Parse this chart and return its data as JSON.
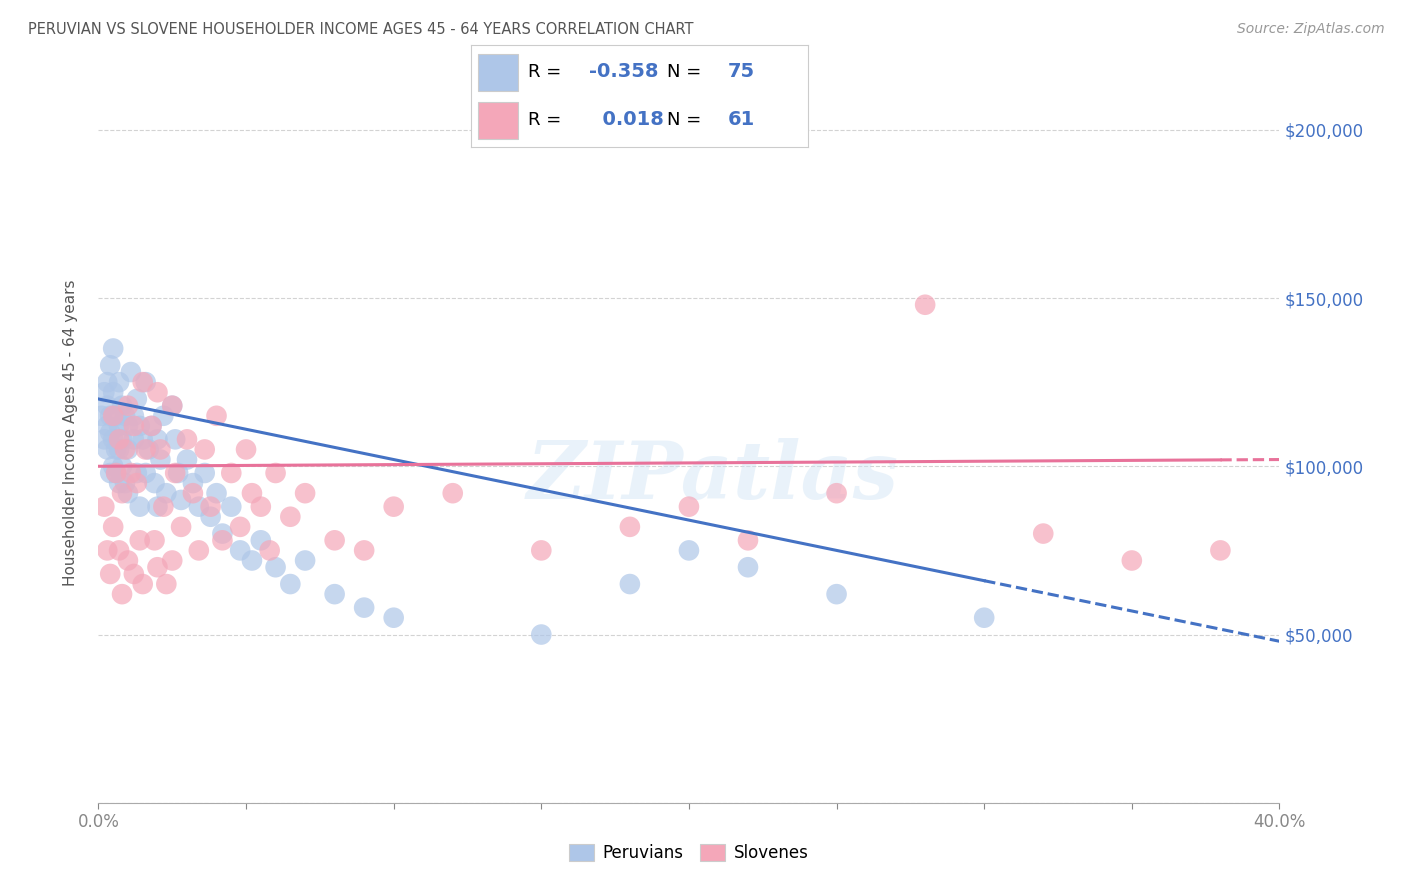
{
  "title": "PERUVIAN VS SLOVENE HOUSEHOLDER INCOME AGES 45 - 64 YEARS CORRELATION CHART",
  "source": "Source: ZipAtlas.com",
  "ylabel": "Householder Income Ages 45 - 64 years",
  "xlim": [
    0.0,
    0.4
  ],
  "ylim": [
    0,
    220000
  ],
  "peruvian_color": "#aec6e8",
  "slovene_color": "#f4a7b9",
  "peruvian_R": -0.358,
  "peruvian_N": 75,
  "slovene_R": 0.018,
  "slovene_N": 61,
  "peruvian_line_color": "#4472c4",
  "slovene_line_color": "#e8729a",
  "watermark": "ZIPatlas",
  "background_color": "#ffffff",
  "grid_color": "#c8c8c8",
  "title_color": "#555555",
  "axis_label_color": "#555555",
  "ytick_color": "#4472c4",
  "legend_text_color": "#4472c4",
  "peruvian_scatter_x": [
    0.001,
    0.002,
    0.002,
    0.003,
    0.003,
    0.003,
    0.003,
    0.004,
    0.004,
    0.004,
    0.004,
    0.005,
    0.005,
    0.005,
    0.005,
    0.006,
    0.006,
    0.006,
    0.007,
    0.007,
    0.007,
    0.007,
    0.008,
    0.008,
    0.008,
    0.009,
    0.009,
    0.01,
    0.01,
    0.01,
    0.011,
    0.012,
    0.012,
    0.013,
    0.013,
    0.014,
    0.014,
    0.015,
    0.016,
    0.016,
    0.017,
    0.018,
    0.019,
    0.02,
    0.02,
    0.021,
    0.022,
    0.023,
    0.025,
    0.026,
    0.027,
    0.028,
    0.03,
    0.032,
    0.034,
    0.036,
    0.038,
    0.04,
    0.042,
    0.045,
    0.048,
    0.052,
    0.055,
    0.06,
    0.065,
    0.07,
    0.08,
    0.09,
    0.1,
    0.15,
    0.18,
    0.2,
    0.22,
    0.25,
    0.3
  ],
  "peruvian_scatter_y": [
    115000,
    108000,
    122000,
    112000,
    105000,
    118000,
    125000,
    110000,
    98000,
    130000,
    115000,
    122000,
    108000,
    135000,
    100000,
    115000,
    105000,
    98000,
    112000,
    125000,
    105000,
    95000,
    108000,
    118000,
    100000,
    115000,
    95000,
    112000,
    105000,
    92000,
    128000,
    115000,
    108000,
    120000,
    98000,
    112000,
    88000,
    108000,
    125000,
    98000,
    105000,
    112000,
    95000,
    108000,
    88000,
    102000,
    115000,
    92000,
    118000,
    108000,
    98000,
    90000,
    102000,
    95000,
    88000,
    98000,
    85000,
    92000,
    80000,
    88000,
    75000,
    72000,
    78000,
    70000,
    65000,
    72000,
    62000,
    58000,
    55000,
    50000,
    65000,
    75000,
    70000,
    62000,
    55000
  ],
  "slovene_scatter_x": [
    0.002,
    0.003,
    0.004,
    0.005,
    0.005,
    0.006,
    0.007,
    0.007,
    0.008,
    0.008,
    0.009,
    0.01,
    0.01,
    0.011,
    0.012,
    0.012,
    0.013,
    0.014,
    0.015,
    0.015,
    0.016,
    0.018,
    0.019,
    0.02,
    0.02,
    0.021,
    0.022,
    0.023,
    0.025,
    0.025,
    0.026,
    0.028,
    0.03,
    0.032,
    0.034,
    0.036,
    0.038,
    0.04,
    0.042,
    0.045,
    0.048,
    0.05,
    0.052,
    0.055,
    0.058,
    0.06,
    0.065,
    0.07,
    0.08,
    0.09,
    0.1,
    0.12,
    0.15,
    0.18,
    0.2,
    0.22,
    0.25,
    0.28,
    0.32,
    0.35,
    0.38
  ],
  "slovene_scatter_y": [
    88000,
    75000,
    68000,
    115000,
    82000,
    98000,
    108000,
    75000,
    92000,
    62000,
    105000,
    118000,
    72000,
    98000,
    112000,
    68000,
    95000,
    78000,
    125000,
    65000,
    105000,
    112000,
    78000,
    122000,
    70000,
    105000,
    88000,
    65000,
    118000,
    72000,
    98000,
    82000,
    108000,
    92000,
    75000,
    105000,
    88000,
    115000,
    78000,
    98000,
    82000,
    105000,
    92000,
    88000,
    75000,
    98000,
    85000,
    92000,
    78000,
    75000,
    88000,
    92000,
    75000,
    82000,
    88000,
    78000,
    92000,
    148000,
    80000,
    72000,
    75000
  ]
}
